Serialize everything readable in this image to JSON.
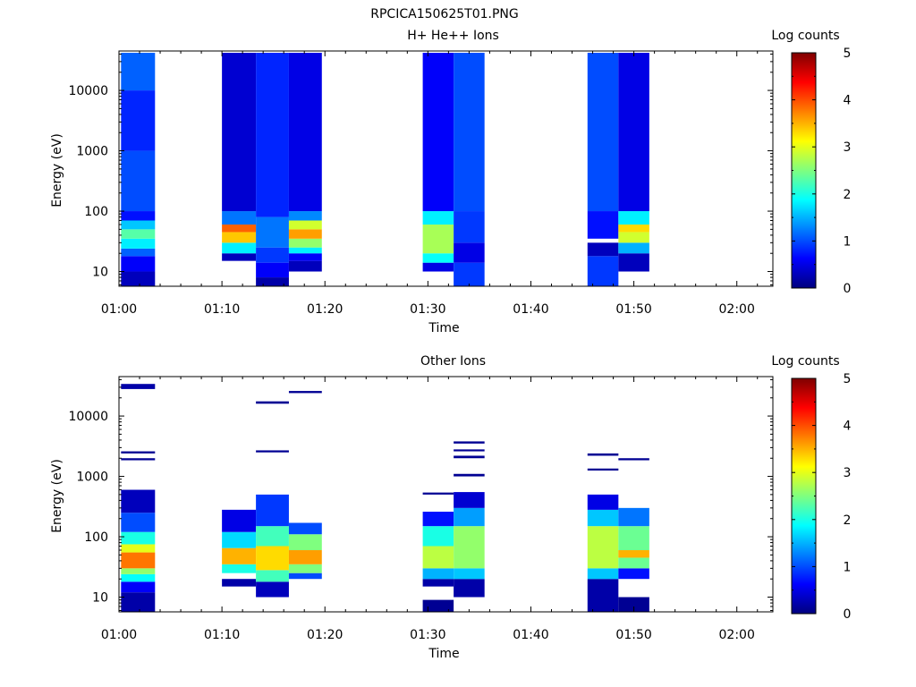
{
  "figure_title": "RPCICA150625T01.PNG",
  "colors": {
    "colormap": [
      "#00007f",
      "#0000ff",
      "#007fff",
      "#00ffff",
      "#7fff7f",
      "#ffff00",
      "#ff7f00",
      "#ff0000",
      "#7f0000"
    ]
  },
  "chart_data": [
    {
      "type": "heatmap",
      "title": "H+ He++ Ions",
      "xlabel": "Time",
      "ylabel": "Energy (eV)",
      "xtick_labels": [
        "01:00",
        "01:10",
        "01:20",
        "01:30",
        "01:40",
        "01:50",
        "02:00"
      ],
      "xlim_minutes": [
        0,
        63.5
      ],
      "y_scale": "log",
      "ylim": [
        5.7,
        45000
      ],
      "ytick_labels": [
        "10",
        "100",
        "1000",
        "10000"
      ],
      "colorbar_label": "Log counts",
      "colorbar_range": [
        0,
        5
      ],
      "colorbar_ticks": [
        "0",
        "1",
        "2",
        "3",
        "4",
        "5"
      ],
      "scans": [
        {
          "start_min": 0.2,
          "end_min": 3.5,
          "bands": [
            {
              "e_min": 5.7,
              "e_max": 10,
              "v": 0.3
            },
            {
              "e_min": 10,
              "e_max": 18,
              "v": 0.6
            },
            {
              "e_min": 18,
              "e_max": 24,
              "v": 1.1
            },
            {
              "e_min": 24,
              "e_max": 35,
              "v": 1.8
            },
            {
              "e_min": 35,
              "e_max": 50,
              "v": 2.3
            },
            {
              "e_min": 50,
              "e_max": 70,
              "v": 1.6
            },
            {
              "e_min": 70,
              "e_max": 100,
              "v": 0.7
            },
            {
              "e_min": 100,
              "e_max": 1000,
              "v": 1.0
            },
            {
              "e_min": 1000,
              "e_max": 10000,
              "v": 0.8
            },
            {
              "e_min": 10000,
              "e_max": 42000,
              "v": 1.1
            }
          ]
        },
        {
          "start_min": 10.0,
          "end_min": 13.3,
          "bands": [
            {
              "e_min": 15,
              "e_max": 20,
              "v": 0.3
            },
            {
              "e_min": 20,
              "e_max": 30,
              "v": 1.8
            },
            {
              "e_min": 30,
              "e_max": 45,
              "v": 3.4
            },
            {
              "e_min": 45,
              "e_max": 60,
              "v": 3.9
            },
            {
              "e_min": 60,
              "e_max": 100,
              "v": 1.2
            },
            {
              "e_min": 100,
              "e_max": 42000,
              "v": 0.4
            }
          ]
        },
        {
          "start_min": 13.3,
          "end_min": 16.5,
          "bands": [
            {
              "e_min": 5.7,
              "e_max": 8,
              "v": 0.2
            },
            {
              "e_min": 8,
              "e_max": 14,
              "v": 0.6
            },
            {
              "e_min": 14,
              "e_max": 25,
              "v": 0.9
            },
            {
              "e_min": 25,
              "e_max": 80,
              "v": 1.2
            },
            {
              "e_min": 80,
              "e_max": 42000,
              "v": 0.8
            }
          ]
        },
        {
          "start_min": 16.5,
          "end_min": 19.7,
          "bands": [
            {
              "e_min": 10,
              "e_max": 15,
              "v": 0.3
            },
            {
              "e_min": 15,
              "e_max": 20,
              "v": 0.6
            },
            {
              "e_min": 20,
              "e_max": 25,
              "v": 1.8
            },
            {
              "e_min": 25,
              "e_max": 35,
              "v": 2.6
            },
            {
              "e_min": 35,
              "e_max": 50,
              "v": 3.6
            },
            {
              "e_min": 50,
              "e_max": 70,
              "v": 2.9
            },
            {
              "e_min": 70,
              "e_max": 100,
              "v": 1.3
            },
            {
              "e_min": 100,
              "e_max": 42000,
              "v": 0.5
            }
          ]
        },
        {
          "start_min": 29.5,
          "end_min": 32.5,
          "bands": [
            {
              "e_min": 10,
              "e_max": 14,
              "v": 0.5
            },
            {
              "e_min": 14,
              "e_max": 20,
              "v": 1.9
            },
            {
              "e_min": 20,
              "e_max": 60,
              "v": 2.7
            },
            {
              "e_min": 60,
              "e_max": 100,
              "v": 1.8
            },
            {
              "e_min": 100,
              "e_max": 42000,
              "v": 0.6
            }
          ]
        },
        {
          "start_min": 32.5,
          "end_min": 35.5,
          "bands": [
            {
              "e_min": 5.7,
              "e_max": 14,
              "v": 0.9
            },
            {
              "e_min": 14,
              "e_max": 30,
              "v": 0.5
            },
            {
              "e_min": 30,
              "e_max": 100,
              "v": 0.9
            },
            {
              "e_min": 100,
              "e_max": 42000,
              "v": 1.0
            }
          ]
        },
        {
          "start_min": 45.5,
          "end_min": 48.5,
          "bands": [
            {
              "e_min": 5.7,
              "e_max": 18,
              "v": 0.9
            },
            {
              "e_min": 18,
              "e_max": 30,
              "v": 0.3
            },
            {
              "e_min": 35,
              "e_max": 100,
              "v": 0.7
            },
            {
              "e_min": 100,
              "e_max": 42000,
              "v": 1.0
            }
          ]
        },
        {
          "start_min": 48.5,
          "end_min": 51.5,
          "bands": [
            {
              "e_min": 10,
              "e_max": 20,
              "v": 0.3
            },
            {
              "e_min": 20,
              "e_max": 30,
              "v": 1.5
            },
            {
              "e_min": 30,
              "e_max": 45,
              "v": 2.9
            },
            {
              "e_min": 45,
              "e_max": 60,
              "v": 3.3
            },
            {
              "e_min": 60,
              "e_max": 100,
              "v": 1.8
            },
            {
              "e_min": 100,
              "e_max": 42000,
              "v": 0.5
            }
          ]
        }
      ]
    },
    {
      "type": "heatmap",
      "title": "Other Ions",
      "xlabel": "Time",
      "ylabel": "Energy (eV)",
      "xtick_labels": [
        "01:00",
        "01:10",
        "01:20",
        "01:30",
        "01:40",
        "01:50",
        "02:00"
      ],
      "xlim_minutes": [
        0,
        63.5
      ],
      "y_scale": "log",
      "ylim": [
        5.7,
        45000
      ],
      "ytick_labels": [
        "10",
        "100",
        "1000",
        "10000"
      ],
      "colorbar_label": "Log counts",
      "colorbar_range": [
        0,
        5
      ],
      "colorbar_ticks": [
        "0",
        "1",
        "2",
        "3",
        "4",
        "5"
      ],
      "scans": [
        {
          "start_min": 0.2,
          "end_min": 3.5,
          "bands": [
            {
              "e_min": 5.7,
              "e_max": 12,
              "v": 0.2
            },
            {
              "e_min": 12,
              "e_max": 18,
              "v": 0.6
            },
            {
              "e_min": 18,
              "e_max": 24,
              "v": 1.9
            },
            {
              "e_min": 24,
              "e_max": 30,
              "v": 2.6
            },
            {
              "e_min": 30,
              "e_max": 55,
              "v": 3.8
            },
            {
              "e_min": 55,
              "e_max": 75,
              "v": 3.0
            },
            {
              "e_min": 75,
              "e_max": 120,
              "v": 2.0
            },
            {
              "e_min": 120,
              "e_max": 250,
              "v": 1.0
            },
            {
              "e_min": 250,
              "e_max": 600,
              "v": 0.3
            },
            {
              "e_min": 1850,
              "e_max": 2000,
              "v": 0.1
            },
            {
              "e_min": 2400,
              "e_max": 2600,
              "v": 0.1
            },
            {
              "e_min": 28000,
              "e_max": 34000,
              "v": 0.2
            }
          ]
        },
        {
          "start_min": 10.0,
          "end_min": 13.3,
          "bands": [
            {
              "e_min": 15,
              "e_max": 20,
              "v": 0.2
            },
            {
              "e_min": 25,
              "e_max": 35,
              "v": 2.0
            },
            {
              "e_min": 35,
              "e_max": 65,
              "v": 3.5
            },
            {
              "e_min": 65,
              "e_max": 120,
              "v": 1.7
            },
            {
              "e_min": 120,
              "e_max": 280,
              "v": 0.5
            }
          ]
        },
        {
          "start_min": 13.3,
          "end_min": 16.5,
          "bands": [
            {
              "e_min": 10,
              "e_max": 18,
              "v": 0.3
            },
            {
              "e_min": 18,
              "e_max": 28,
              "v": 2.2
            },
            {
              "e_min": 28,
              "e_max": 70,
              "v": 3.3
            },
            {
              "e_min": 70,
              "e_max": 150,
              "v": 2.2
            },
            {
              "e_min": 150,
              "e_max": 500,
              "v": 0.9
            },
            {
              "e_min": 2500,
              "e_max": 2700,
              "v": 0.1
            },
            {
              "e_min": 16000,
              "e_max": 17500,
              "v": 0.1
            }
          ]
        },
        {
          "start_min": 16.5,
          "end_min": 19.7,
          "bands": [
            {
              "e_min": 20,
              "e_max": 25,
              "v": 1.0
            },
            {
              "e_min": 25,
              "e_max": 35,
              "v": 2.5
            },
            {
              "e_min": 35,
              "e_max": 60,
              "v": 3.6
            },
            {
              "e_min": 60,
              "e_max": 110,
              "v": 2.5
            },
            {
              "e_min": 110,
              "e_max": 170,
              "v": 1.0
            },
            {
              "e_min": 24000,
              "e_max": 26000,
              "v": 0.1
            }
          ]
        },
        {
          "start_min": 29.5,
          "end_min": 32.5,
          "bands": [
            {
              "e_min": 5.7,
              "e_max": 9,
              "v": 0.1
            },
            {
              "e_min": 15,
              "e_max": 20,
              "v": 0.2
            },
            {
              "e_min": 20,
              "e_max": 30,
              "v": 1.5
            },
            {
              "e_min": 30,
              "e_max": 70,
              "v": 2.8
            },
            {
              "e_min": 70,
              "e_max": 150,
              "v": 2.0
            },
            {
              "e_min": 150,
              "e_max": 260,
              "v": 0.7
            },
            {
              "e_min": 500,
              "e_max": 540,
              "v": 0.1
            }
          ]
        },
        {
          "start_min": 32.5,
          "end_min": 35.5,
          "bands": [
            {
              "e_min": 10,
              "e_max": 20,
              "v": 0.2
            },
            {
              "e_min": 20,
              "e_max": 30,
              "v": 1.6
            },
            {
              "e_min": 30,
              "e_max": 150,
              "v": 2.6
            },
            {
              "e_min": 150,
              "e_max": 300,
              "v": 1.4
            },
            {
              "e_min": 300,
              "e_max": 550,
              "v": 0.4
            },
            {
              "e_min": 1000,
              "e_max": 1100,
              "v": 0.1
            },
            {
              "e_min": 2000,
              "e_max": 2200,
              "v": 0.1
            },
            {
              "e_min": 2600,
              "e_max": 2800,
              "v": 0.1
            },
            {
              "e_min": 3500,
              "e_max": 3800,
              "v": 0.1
            }
          ]
        },
        {
          "start_min": 45.5,
          "end_min": 48.5,
          "bands": [
            {
              "e_min": 5.7,
              "e_max": 20,
              "v": 0.2
            },
            {
              "e_min": 20,
              "e_max": 30,
              "v": 1.6
            },
            {
              "e_min": 30,
              "e_max": 150,
              "v": 2.8
            },
            {
              "e_min": 150,
              "e_max": 280,
              "v": 1.6
            },
            {
              "e_min": 280,
              "e_max": 500,
              "v": 0.5
            },
            {
              "e_min": 1250,
              "e_max": 1350,
              "v": 0.1
            },
            {
              "e_min": 2200,
              "e_max": 2400,
              "v": 0.1
            }
          ]
        },
        {
          "start_min": 48.5,
          "end_min": 51.5,
          "bands": [
            {
              "e_min": 5.7,
              "e_max": 10,
              "v": 0.1
            },
            {
              "e_min": 20,
              "e_max": 30,
              "v": 0.7
            },
            {
              "e_min": 30,
              "e_max": 45,
              "v": 2.4
            },
            {
              "e_min": 45,
              "e_max": 60,
              "v": 3.5
            },
            {
              "e_min": 60,
              "e_max": 150,
              "v": 2.4
            },
            {
              "e_min": 150,
              "e_max": 300,
              "v": 1.2
            },
            {
              "e_min": 1850,
              "e_max": 2000,
              "v": 0.1
            }
          ]
        }
      ]
    }
  ]
}
